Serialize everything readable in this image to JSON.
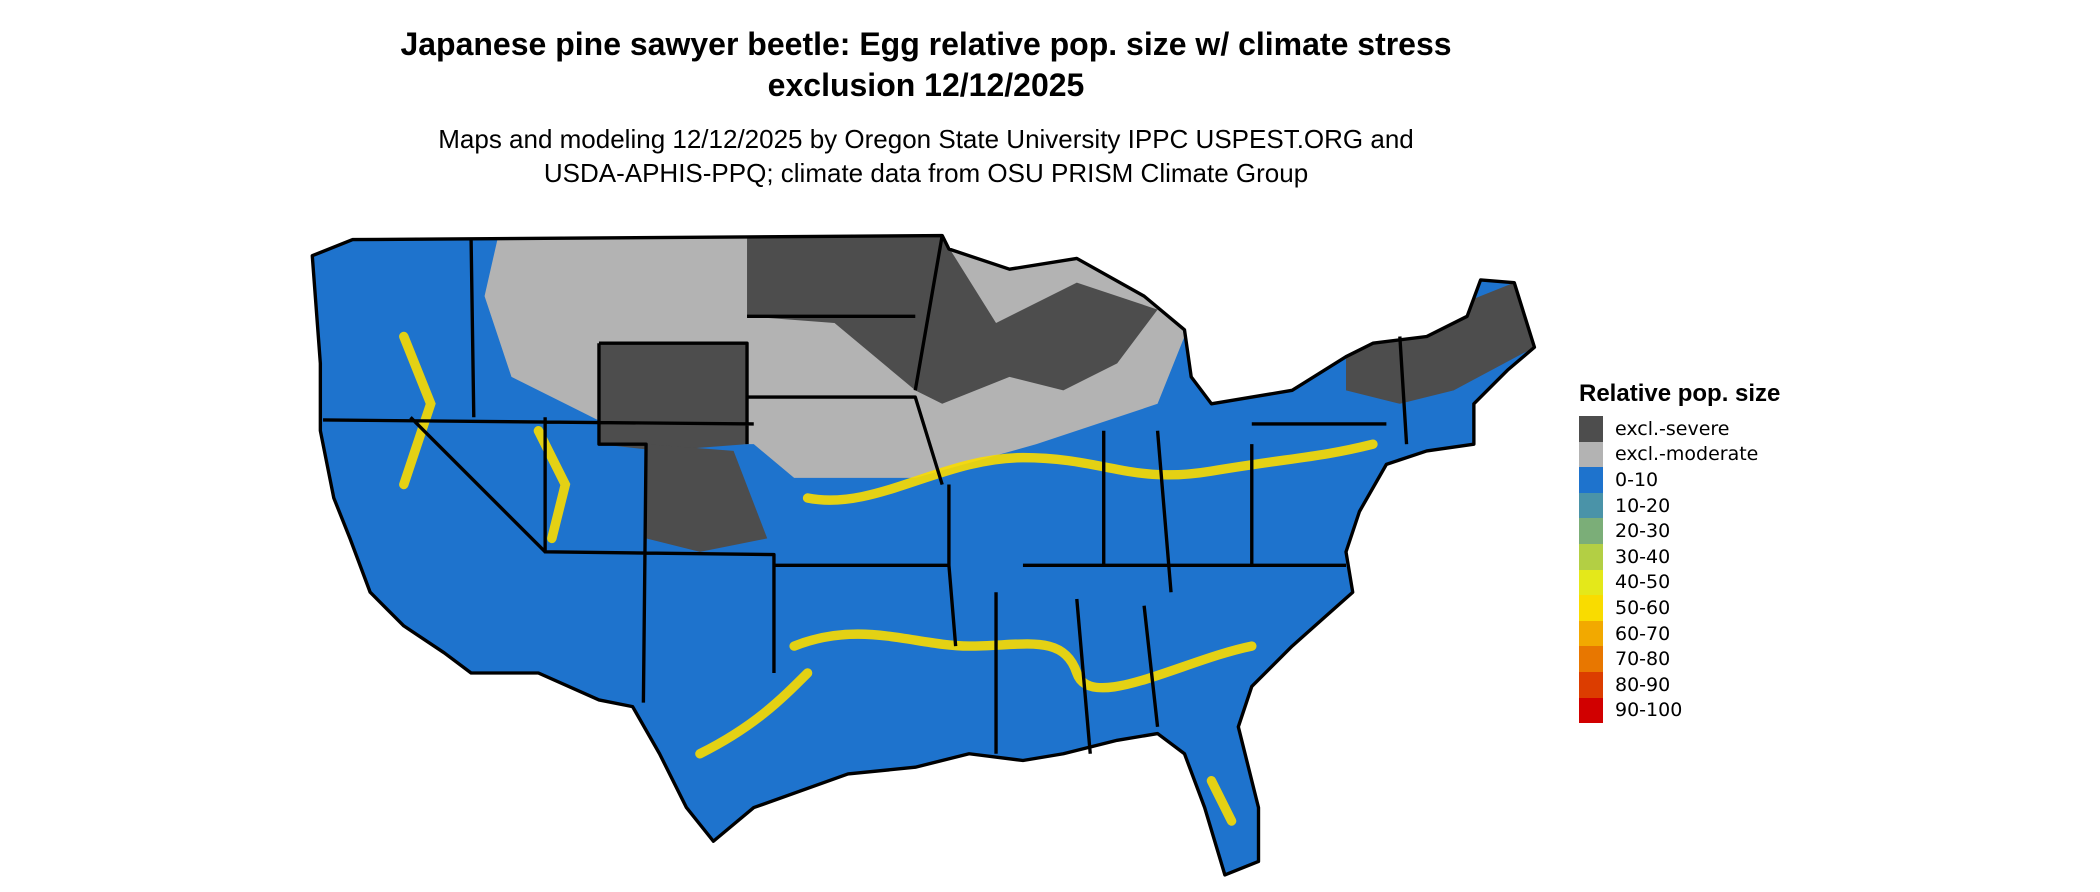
{
  "title": "Japanese pine sawyer beetle: Egg relative pop. size w/ climate stress exclusion 12/12/2025",
  "subtitle": "Maps and modeling 12/12/2025 by Oregon State University IPPC USPEST.ORG and USDA-APHIS-PPQ; climate data from OSU PRISM Climate Group",
  "legend": {
    "title": "Relative pop. size",
    "items": [
      {
        "label": "excl.-severe",
        "color": "#4d4d4d"
      },
      {
        "label": "excl.-moderate",
        "color": "#b3b3b3"
      },
      {
        "label": "0-10",
        "color": "#1e73cd"
      },
      {
        "label": "10-20",
        "color": "#4a93a8"
      },
      {
        "label": "20-30",
        "color": "#7bae78"
      },
      {
        "label": "30-40",
        "color": "#b3cf44"
      },
      {
        "label": "40-50",
        "color": "#e4e81a"
      },
      {
        "label": "50-60",
        "color": "#f9dc00"
      },
      {
        "label": "60-70",
        "color": "#f2a900"
      },
      {
        "label": "70-80",
        "color": "#e87700"
      },
      {
        "label": "80-90",
        "color": "#dc3d00"
      },
      {
        "label": "90-100",
        "color": "#d10000"
      }
    ]
  }
}
